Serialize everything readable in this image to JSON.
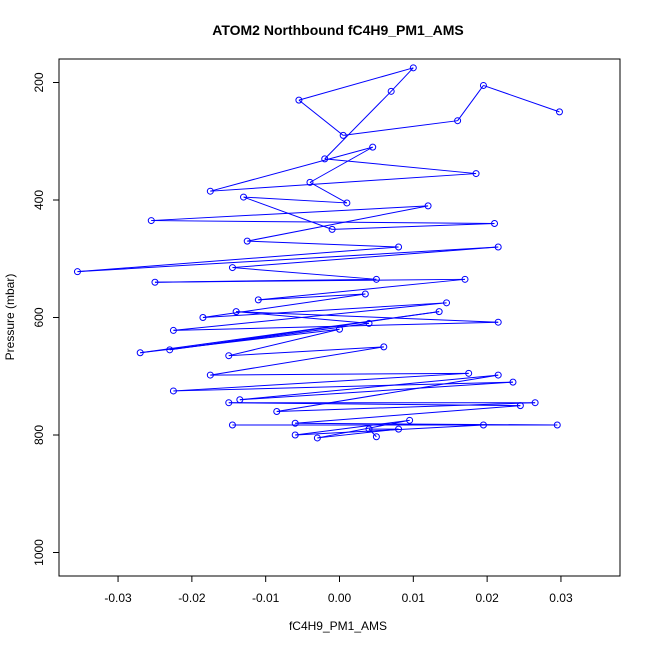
{
  "chart_data": {
    "type": "line",
    "title": "ATOM2 Northbound fC4H9_PM1_AMS",
    "xlabel": "fC4H9_PM1_AMS",
    "ylabel": "Pressure (mbar)",
    "xlim": [
      -0.038,
      0.038
    ],
    "ylim": [
      1040,
      160
    ],
    "y_reversed": true,
    "x_ticks": [
      -0.03,
      -0.02,
      -0.01,
      0.0,
      0.01,
      0.02,
      0.03
    ],
    "x_tick_labels": [
      "-0.03",
      "-0.02",
      "-0.01",
      "0.00",
      "0.01",
      "0.02",
      "0.03"
    ],
    "y_ticks": [
      200,
      400,
      600,
      800,
      1000
    ],
    "y_tick_labels": [
      "200",
      "400",
      "600",
      "800",
      "1000"
    ],
    "grid": false,
    "series": [
      {
        "color": "#0000ff",
        "marker": "open-circle",
        "points": [
          [
            0.0298,
            250
          ],
          [
            0.0195,
            205
          ],
          [
            0.016,
            265
          ],
          [
            0.0005,
            290
          ],
          [
            -0.0055,
            230
          ],
          [
            0.01,
            175
          ],
          [
            0.007,
            215
          ],
          [
            -0.002,
            330
          ],
          [
            0.0185,
            355
          ],
          [
            -0.0175,
            385
          ],
          [
            0.0045,
            310
          ],
          [
            -0.004,
            370
          ],
          [
            0.001,
            405
          ],
          [
            -0.013,
            395
          ],
          [
            -0.001,
            450
          ],
          [
            0.021,
            440
          ],
          [
            -0.0255,
            435
          ],
          [
            0.012,
            410
          ],
          [
            -0.0125,
            470
          ],
          [
            0.008,
            480
          ],
          [
            -0.0355,
            522
          ],
          [
            0.0215,
            480
          ],
          [
            -0.0145,
            515
          ],
          [
            0.005,
            535
          ],
          [
            -0.025,
            540
          ],
          [
            0.017,
            535
          ],
          [
            -0.011,
            570
          ],
          [
            0.0035,
            560
          ],
          [
            -0.0185,
            600
          ],
          [
            0.0145,
            575
          ],
          [
            -0.0225,
            622
          ],
          [
            0.0215,
            608
          ],
          [
            -0.014,
            590
          ],
          [
            0.004,
            610
          ],
          [
            -0.023,
            655
          ],
          [
            0.0135,
            590
          ],
          [
            -0.027,
            660
          ],
          [
            0.0,
            620
          ],
          [
            -0.015,
            665
          ],
          [
            0.006,
            650
          ],
          [
            -0.0175,
            698
          ],
          [
            0.0175,
            695
          ],
          [
            -0.0225,
            725
          ],
          [
            0.0235,
            710
          ],
          [
            -0.0135,
            740
          ],
          [
            0.0215,
            698
          ],
          [
            -0.0085,
            760
          ],
          [
            0.0265,
            745
          ],
          [
            -0.015,
            745
          ],
          [
            0.0245,
            750
          ],
          [
            -0.006,
            780
          ],
          [
            0.0295,
            783
          ],
          [
            -0.0145,
            783
          ],
          [
            0.0195,
            783
          ],
          [
            -0.006,
            800
          ],
          [
            0.0095,
            775
          ],
          [
            -0.003,
            805
          ],
          [
            0.008,
            790
          ],
          [
            0.004,
            790
          ],
          [
            0.005,
            803
          ]
        ]
      }
    ]
  }
}
